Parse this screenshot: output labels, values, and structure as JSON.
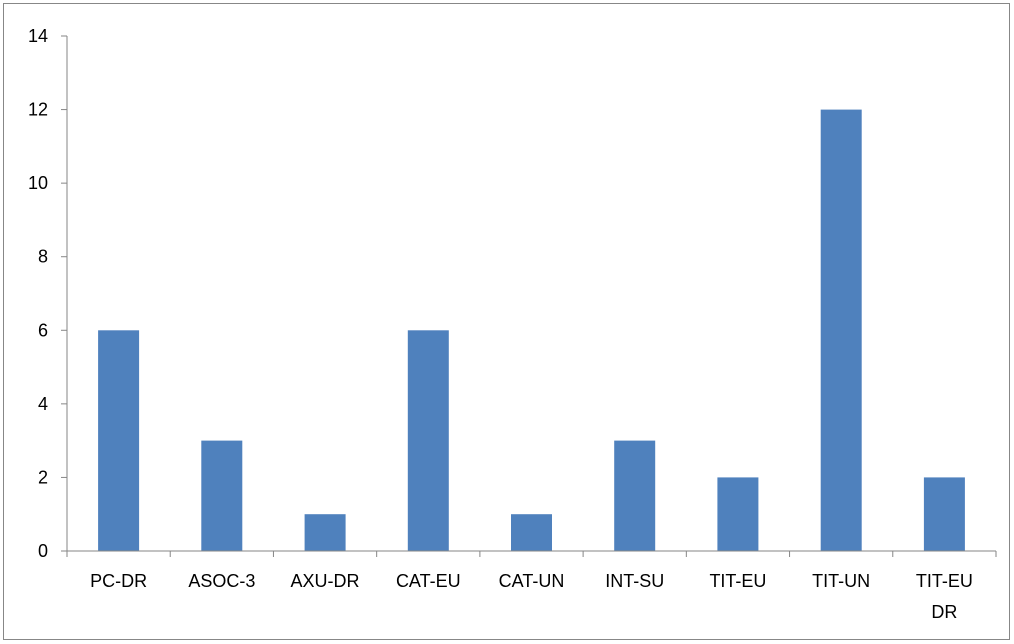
{
  "chart_data": {
    "type": "bar",
    "categories": [
      "PC-DR",
      "ASOC-3",
      "AXU-DR",
      "CAT-EU",
      "CAT-UN",
      "INT-SU",
      "TIT-EU",
      "TIT-UN",
      "TIT-EU DR"
    ],
    "category_lines": [
      [
        "PC-DR"
      ],
      [
        "ASOC-3"
      ],
      [
        "AXU-DR"
      ],
      [
        "CAT-EU"
      ],
      [
        "CAT-UN"
      ],
      [
        "INT-SU"
      ],
      [
        "TIT-EU"
      ],
      [
        "TIT-UN"
      ],
      [
        "TIT-EU",
        "DR"
      ]
    ],
    "values": [
      6,
      3,
      1,
      6,
      1,
      3,
      2,
      12,
      2
    ],
    "ylim": [
      0,
      14
    ],
    "yticks": [
      0,
      2,
      4,
      6,
      8,
      10,
      12,
      14
    ],
    "title": "",
    "xlabel": "",
    "ylabel": "",
    "grid": false,
    "legend": "none",
    "colors": {
      "bar": "#4f81bd",
      "axis": "#868686",
      "border": "#878787",
      "text": "#000000"
    }
  }
}
